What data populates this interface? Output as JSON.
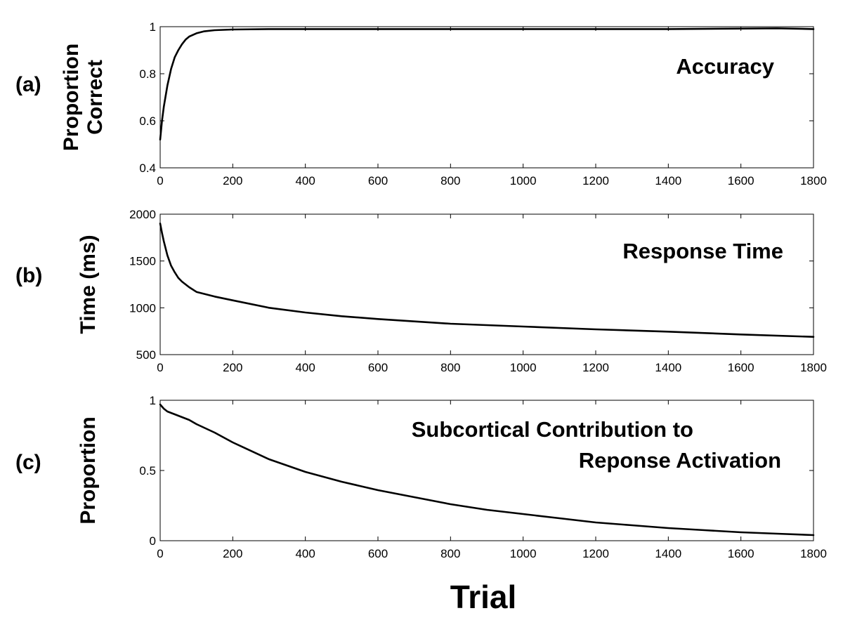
{
  "chart_data": [
    {
      "type": "line",
      "panel_label": "(a)",
      "ylabel_lines": [
        "Proportion",
        "Correct"
      ],
      "annotation_lines": [
        "Accuracy"
      ],
      "xlim": [
        0,
        1800
      ],
      "ylim": [
        0.4,
        1
      ],
      "xticks": [
        0,
        200,
        400,
        600,
        800,
        1000,
        1200,
        1400,
        1600,
        1800
      ],
      "yticks": [
        0.4,
        0.6,
        0.8,
        1
      ],
      "ytick_labels": [
        "0.4",
        "0.6",
        "0.8",
        "1"
      ],
      "grid": false,
      "series": [
        {
          "x": [
            0,
            5,
            10,
            20,
            30,
            40,
            50,
            60,
            70,
            80,
            100,
            120,
            150,
            200,
            300,
            400,
            600,
            800,
            1000,
            1200,
            1400,
            1600,
            1700,
            1800
          ],
          "values": [
            0.52,
            0.6,
            0.66,
            0.75,
            0.82,
            0.87,
            0.9,
            0.925,
            0.945,
            0.958,
            0.972,
            0.98,
            0.985,
            0.988,
            0.99,
            0.99,
            0.99,
            0.99,
            0.99,
            0.99,
            0.99,
            0.992,
            0.993,
            0.99
          ]
        }
      ]
    },
    {
      "type": "line",
      "panel_label": "(b)",
      "ylabel_lines": [
        "Time (ms)"
      ],
      "annotation_lines": [
        "Response Time"
      ],
      "xlim": [
        0,
        1800
      ],
      "ylim": [
        500,
        2000
      ],
      "xticks": [
        0,
        200,
        400,
        600,
        800,
        1000,
        1200,
        1400,
        1600,
        1800
      ],
      "yticks": [
        500,
        1000,
        1500,
        2000
      ],
      "ytick_labels": [
        "500",
        "1000",
        "1500",
        "2000"
      ],
      "grid": false,
      "series": [
        {
          "x": [
            0,
            5,
            10,
            20,
            30,
            40,
            50,
            60,
            80,
            100,
            150,
            200,
            300,
            400,
            500,
            600,
            800,
            1000,
            1200,
            1400,
            1600,
            1800
          ],
          "values": [
            1900,
            1800,
            1710,
            1560,
            1450,
            1380,
            1320,
            1280,
            1220,
            1170,
            1120,
            1080,
            1000,
            950,
            910,
            880,
            830,
            800,
            770,
            745,
            715,
            690
          ]
        }
      ]
    },
    {
      "type": "line",
      "panel_label": "(c)",
      "ylabel_lines": [
        "Proportion"
      ],
      "annotation_lines": [
        "Subcortical Contribution to",
        "Reponse Activation"
      ],
      "xlim": [
        0,
        1800
      ],
      "ylim": [
        0,
        1
      ],
      "xticks": [
        0,
        200,
        400,
        600,
        800,
        1000,
        1200,
        1400,
        1600,
        1800
      ],
      "yticks": [
        0,
        0.5,
        1
      ],
      "ytick_labels": [
        "0",
        "0.5",
        "1"
      ],
      "grid": false,
      "series": [
        {
          "x": [
            0,
            10,
            20,
            40,
            60,
            80,
            100,
            150,
            200,
            300,
            400,
            500,
            600,
            700,
            800,
            900,
            1000,
            1100,
            1200,
            1300,
            1400,
            1500,
            1600,
            1700,
            1800
          ],
          "values": [
            0.97,
            0.94,
            0.92,
            0.9,
            0.88,
            0.86,
            0.83,
            0.77,
            0.7,
            0.58,
            0.49,
            0.42,
            0.36,
            0.31,
            0.26,
            0.22,
            0.19,
            0.16,
            0.13,
            0.11,
            0.09,
            0.075,
            0.06,
            0.05,
            0.04
          ]
        }
      ]
    }
  ],
  "xlabel": "Trial",
  "colors": {
    "line": "#000000",
    "axes": "#000000",
    "background": "#ffffff"
  }
}
